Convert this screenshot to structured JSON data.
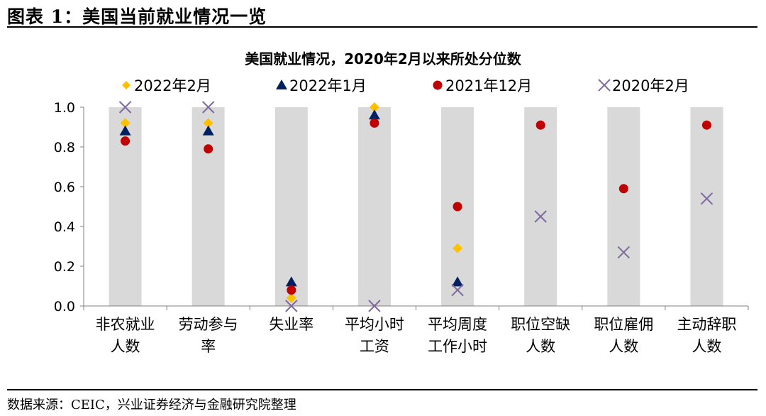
{
  "header": {
    "figure_title": "图表 1：美国当前就业情况一览"
  },
  "footer": {
    "source": "数据来源：CEIC，兴业证券经济与金融研究院整理"
  },
  "chart_data": {
    "type": "scatter",
    "title": "美国就业情况，2020年2月以来所处分位数",
    "xlabel": "",
    "ylabel": "",
    "ylim": [
      0,
      1
    ],
    "yticks": [
      "0.0",
      "0.2",
      "0.4",
      "0.6",
      "0.8",
      "1.0"
    ],
    "grid": false,
    "legend_position": "top",
    "categories": [
      [
        "非农就业",
        "人数"
      ],
      [
        "劳动参与",
        "率"
      ],
      [
        "失业率"
      ],
      [
        "平均小时",
        "工资"
      ],
      [
        "平均周度",
        "工作小时"
      ],
      [
        "职位空缺",
        "人数"
      ],
      [
        "职位雇佣",
        "人数"
      ],
      [
        "主动辞职",
        "人数"
      ]
    ],
    "band_color": "#d9d9d9",
    "series": [
      {
        "name": "2022年2月",
        "marker": "diamond",
        "color": "#ffc000",
        "values": [
          0.92,
          0.92,
          0.04,
          1.0,
          0.29,
          null,
          null,
          null
        ]
      },
      {
        "name": "2022年1月",
        "marker": "triangle",
        "color": "#002060",
        "values": [
          0.88,
          0.88,
          0.12,
          0.96,
          0.12,
          null,
          null,
          null
        ]
      },
      {
        "name": "2021年12月",
        "marker": "circle",
        "color": "#c00000",
        "values": [
          0.83,
          0.79,
          0.08,
          0.92,
          0.5,
          0.91,
          0.59,
          0.91
        ]
      },
      {
        "name": "2020年2月",
        "marker": "x",
        "color": "#7f6aa0",
        "values": [
          1.0,
          1.0,
          0.0,
          0.0,
          0.08,
          0.45,
          0.27,
          0.54
        ]
      }
    ]
  }
}
